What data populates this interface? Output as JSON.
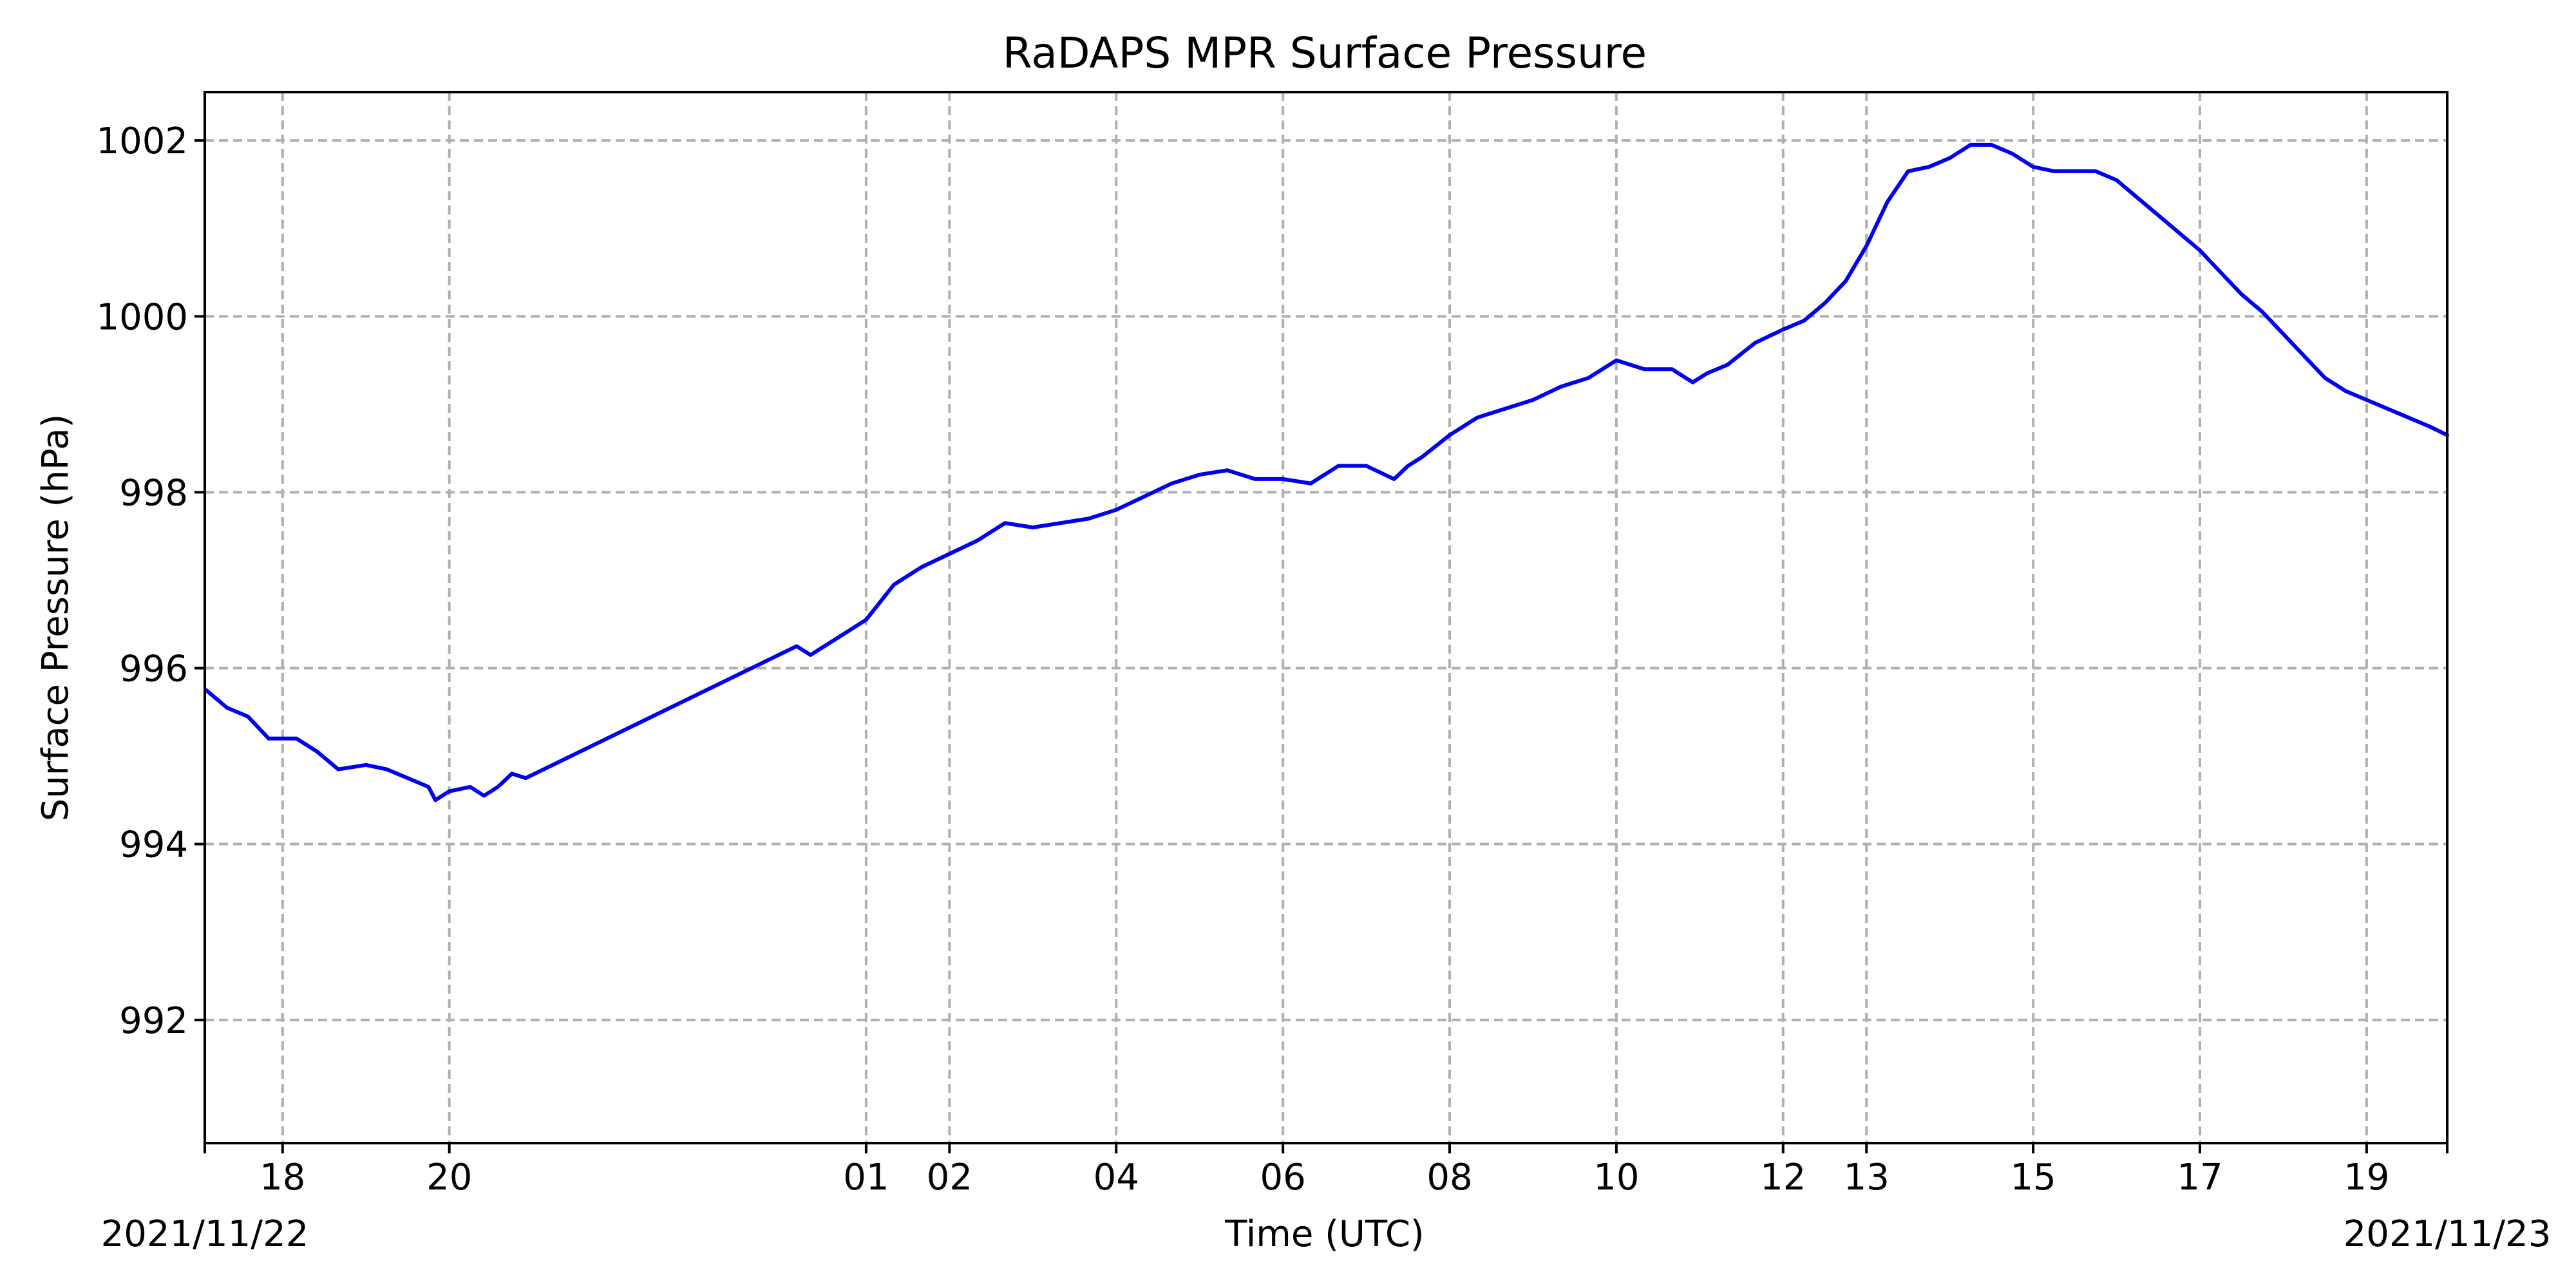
{
  "chart_data": {
    "type": "line",
    "title": "RaDAPS MPR Surface Pressure",
    "xlabel": "Time (UTC)",
    "ylabel": "Surface Pressure (hPa)",
    "date_start_label": "2021/11/22",
    "date_end_label": "2021/11/23",
    "ylim": [
      990.6,
      1002.55
    ],
    "yticks": [
      992,
      994,
      996,
      998,
      1000,
      1002
    ],
    "grid": true,
    "line_color": "#0000ee",
    "xticks": [
      {
        "time": "2021-11-22 18:00",
        "label": "18"
      },
      {
        "time": "2021-11-22 20:00",
        "label": "20"
      },
      {
        "time": "2021-11-23 01:00",
        "label": "01"
      },
      {
        "time": "2021-11-23 02:00",
        "label": "02"
      },
      {
        "time": "2021-11-23 04:00",
        "label": "04"
      },
      {
        "time": "2021-11-23 06:00",
        "label": "06"
      },
      {
        "time": "2021-11-23 08:00",
        "label": "08"
      },
      {
        "time": "2021-11-23 10:00",
        "label": "10"
      },
      {
        "time": "2021-11-23 12:00",
        "label": "12"
      },
      {
        "time": "2021-11-23 13:00",
        "label": "13"
      },
      {
        "time": "2021-11-23 15:00",
        "label": "15"
      },
      {
        "time": "2021-11-23 17:00",
        "label": "17"
      },
      {
        "time": "2021-11-23 19:00",
        "label": "19"
      }
    ],
    "series": [
      {
        "name": "",
        "x": [
          "2021-11-22 17:05",
          "2021-11-22 17:20",
          "2021-11-22 17:35",
          "2021-11-22 17:50",
          "2021-11-22 18:10",
          "2021-11-22 18:25",
          "2021-11-22 18:40",
          "2021-11-22 19:00",
          "2021-11-22 19:15",
          "2021-11-22 19:30",
          "2021-11-22 19:45",
          "2021-11-22 19:50",
          "2021-11-22 20:00",
          "2021-11-22 20:15",
          "2021-11-22 20:25",
          "2021-11-22 20:35",
          "2021-11-22 20:45",
          "2021-11-22 20:55",
          "2021-11-23 00:10",
          "2021-11-23 00:20",
          "2021-11-23 00:35",
          "2021-11-23 00:50",
          "2021-11-23 01:00",
          "2021-11-23 01:20",
          "2021-11-23 01:40",
          "2021-11-23 02:00",
          "2021-11-23 02:20",
          "2021-11-23 02:40",
          "2021-11-23 03:00",
          "2021-11-23 03:20",
          "2021-11-23 03:40",
          "2021-11-23 04:00",
          "2021-11-23 04:20",
          "2021-11-23 04:40",
          "2021-11-23 05:00",
          "2021-11-23 05:20",
          "2021-11-23 05:40",
          "2021-11-23 06:00",
          "2021-11-23 06:20",
          "2021-11-23 06:40",
          "2021-11-23 07:00",
          "2021-11-23 07:20",
          "2021-11-23 07:30",
          "2021-11-23 07:40",
          "2021-11-23 08:00",
          "2021-11-23 08:20",
          "2021-11-23 08:40",
          "2021-11-23 09:00",
          "2021-11-23 09:20",
          "2021-11-23 09:40",
          "2021-11-23 10:00",
          "2021-11-23 10:20",
          "2021-11-23 10:40",
          "2021-11-23 10:55",
          "2021-11-23 11:05",
          "2021-11-23 11:20",
          "2021-11-23 11:40",
          "2021-11-23 12:00",
          "2021-11-23 12:15",
          "2021-11-23 12:30",
          "2021-11-23 12:45",
          "2021-11-23 13:00",
          "2021-11-23 13:15",
          "2021-11-23 13:30",
          "2021-11-23 13:45",
          "2021-11-23 14:00",
          "2021-11-23 14:15",
          "2021-11-23 14:30",
          "2021-11-23 14:45",
          "2021-11-23 15:00",
          "2021-11-23 15:15",
          "2021-11-23 15:30",
          "2021-11-23 15:45",
          "2021-11-23 16:00",
          "2021-11-23 16:15",
          "2021-11-23 16:30",
          "2021-11-23 16:45",
          "2021-11-23 17:00",
          "2021-11-23 17:15",
          "2021-11-23 17:30",
          "2021-11-23 17:45",
          "2021-11-23 18:00",
          "2021-11-23 18:15",
          "2021-11-23 18:30",
          "2021-11-23 18:45",
          "2021-11-23 19:00",
          "2021-11-23 19:15",
          "2021-11-23 19:30",
          "2021-11-23 19:45",
          "2021-11-23 19:58"
        ],
        "y": [
          995.75,
          995.55,
          995.45,
          995.2,
          995.2,
          995.05,
          994.85,
          994.9,
          994.85,
          994.75,
          994.65,
          994.5,
          994.6,
          994.65,
          994.55,
          994.65,
          994.8,
          994.75,
          996.25,
          996.15,
          996.3,
          996.45,
          996.55,
          996.95,
          997.15,
          997.3,
          997.45,
          997.65,
          997.6,
          997.65,
          997.7,
          997.8,
          997.95,
          998.1,
          998.2,
          998.25,
          998.15,
          998.15,
          998.1,
          998.3,
          998.3,
          998.15,
          998.3,
          998.4,
          998.65,
          998.85,
          998.95,
          999.05,
          999.2,
          999.3,
          999.5,
          999.4,
          999.4,
          999.25,
          999.35,
          999.45,
          999.7,
          999.85,
          999.95,
          1000.15,
          1000.4,
          1000.8,
          1001.3,
          1001.65,
          1001.7,
          1001.8,
          1001.95,
          1001.95,
          1001.85,
          1001.7,
          1001.65,
          1001.65,
          1001.65,
          1001.55,
          1001.35,
          1001.15,
          1000.95,
          1000.75,
          1000.5,
          1000.25,
          1000.05,
          999.8,
          999.55,
          999.3,
          999.15,
          999.05,
          998.95,
          998.85,
          998.75,
          998.65
        ]
      }
    ]
  }
}
